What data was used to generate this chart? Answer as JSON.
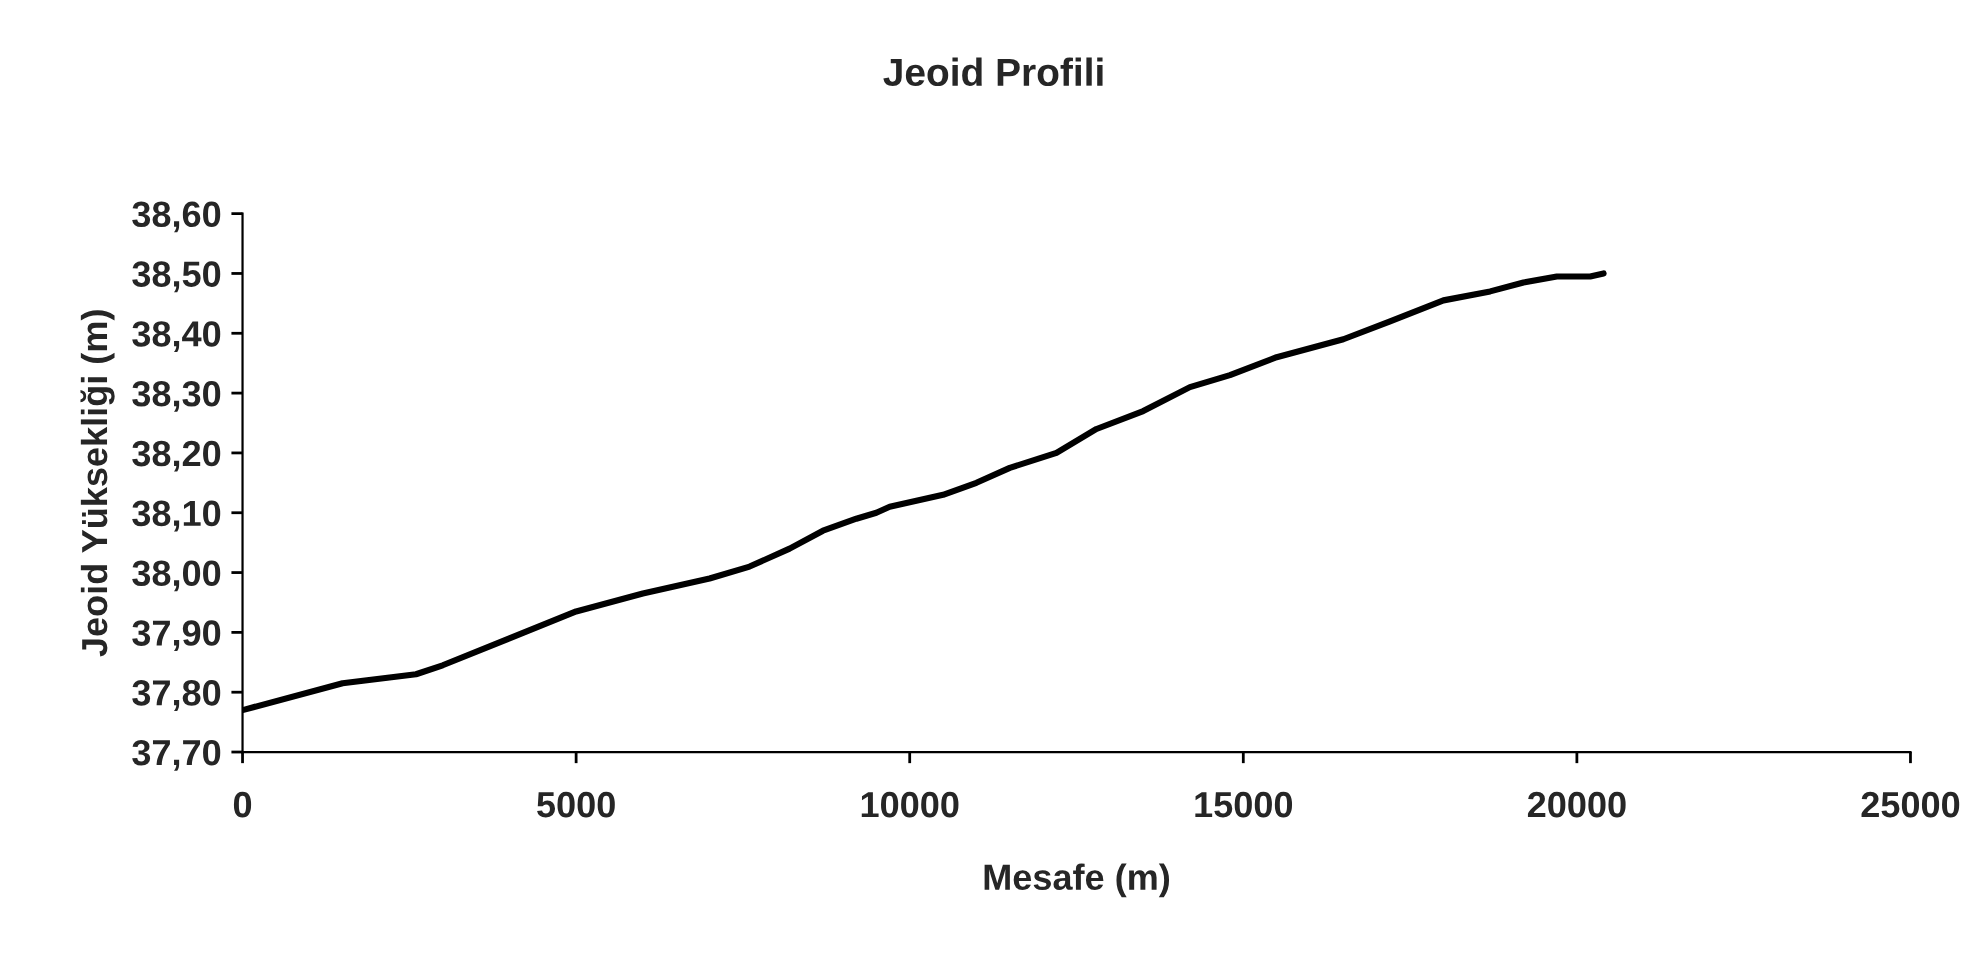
{
  "chart_data": {
    "type": "line",
    "title": "Jeoid Profili",
    "xlabel": "Mesafe (m)",
    "ylabel": "Jeoid Yüksekliği (m)",
    "series": [
      {
        "color": "#000000",
        "x": [
          0,
          1500,
          2600,
          3000,
          4000,
          5000,
          6000,
          7000,
          7600,
          8200,
          8700,
          9200,
          9500,
          9700,
          10500,
          11000,
          11500,
          12200,
          12800,
          13500,
          14200,
          14800,
          15500,
          16500,
          17200,
          18000,
          18700,
          19200,
          19700,
          20200,
          20400
        ],
        "values": [
          37.77,
          37.815,
          37.83,
          37.845,
          37.89,
          37.935,
          37.965,
          37.99,
          38.01,
          38.04,
          38.07,
          38.09,
          38.1,
          38.11,
          38.13,
          38.15,
          38.175,
          38.2,
          38.24,
          38.27,
          38.31,
          38.33,
          38.36,
          38.39,
          38.42,
          38.455,
          38.47,
          38.485,
          38.495,
          38.495,
          38.5
        ]
      }
    ],
    "xlim": [
      0,
      25000
    ],
    "xticks": [
      0,
      5000,
      10000,
      15000,
      20000,
      25000
    ],
    "ylim": [
      37.7,
      38.6
    ],
    "yticks": [
      {
        "value": 37.7,
        "label": "37,70"
      },
      {
        "value": 37.8,
        "label": "37,80"
      },
      {
        "value": 37.9,
        "label": "37,90"
      },
      {
        "value": 38.0,
        "label": "38,00"
      },
      {
        "value": 38.1,
        "label": "38,10"
      },
      {
        "value": 38.2,
        "label": "38,20"
      },
      {
        "value": 38.3,
        "label": "38,30"
      },
      {
        "value": 38.4,
        "label": "38,40"
      },
      {
        "value": 38.5,
        "label": "38,50"
      },
      {
        "value": 38.6,
        "label": "38,60"
      }
    ],
    "grid": false,
    "marker": "none",
    "line_style": "solid"
  }
}
